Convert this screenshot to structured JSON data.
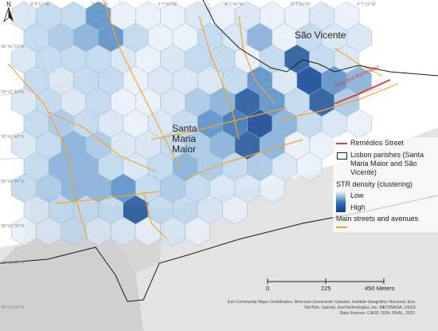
{
  "places": {
    "sao_vicente": "São Vicente",
    "santa_maria": [
      "Santa",
      "Maria",
      "Maior"
    ]
  },
  "street_labels": {
    "remedios": "Rua dos Remédios"
  },
  "coords": {
    "top": [
      "9°8'10\"W",
      "9°8'0\"W",
      "9°7'50\"W",
      "9°7'40\"W",
      "9°7'30\"W",
      "9°7'20\"W"
    ],
    "left": [
      "38°42'50\"N",
      "38°42'45\"N",
      "38°42'40\"N",
      "38°42'35\"N",
      "38°42'30\"N",
      "38°42'25\"N",
      "38°42'20\"N"
    ]
  },
  "legend": {
    "remedios_street": "Remédios Street",
    "parishes": "Lisbon parishes (Santa Maria Maior and São Vicente)",
    "density_title": "STR density (clustering)",
    "low": "Low",
    "high": "High",
    "main_streets": "Main streets and avenues"
  },
  "scale": {
    "labels": [
      "0",
      "225",
      "450 Meters"
    ]
  },
  "credits": {
    "line1": "Esri Community Maps Contributors, Direccion General de Catastro, Instituto Geográfico Nacional, Esri,",
    "line2": "TomTom, Garmin, GeoTechnologies, Inc, METI/NASA, USGS",
    "line3": "Data Sources: CAOP, 2024; RNAL, 2023."
  },
  "colors": {
    "street": "#f0a62e",
    "remedios": "#e23b3b",
    "boundary": "#1a1a1a",
    "river": "#e0e0e0"
  }
}
